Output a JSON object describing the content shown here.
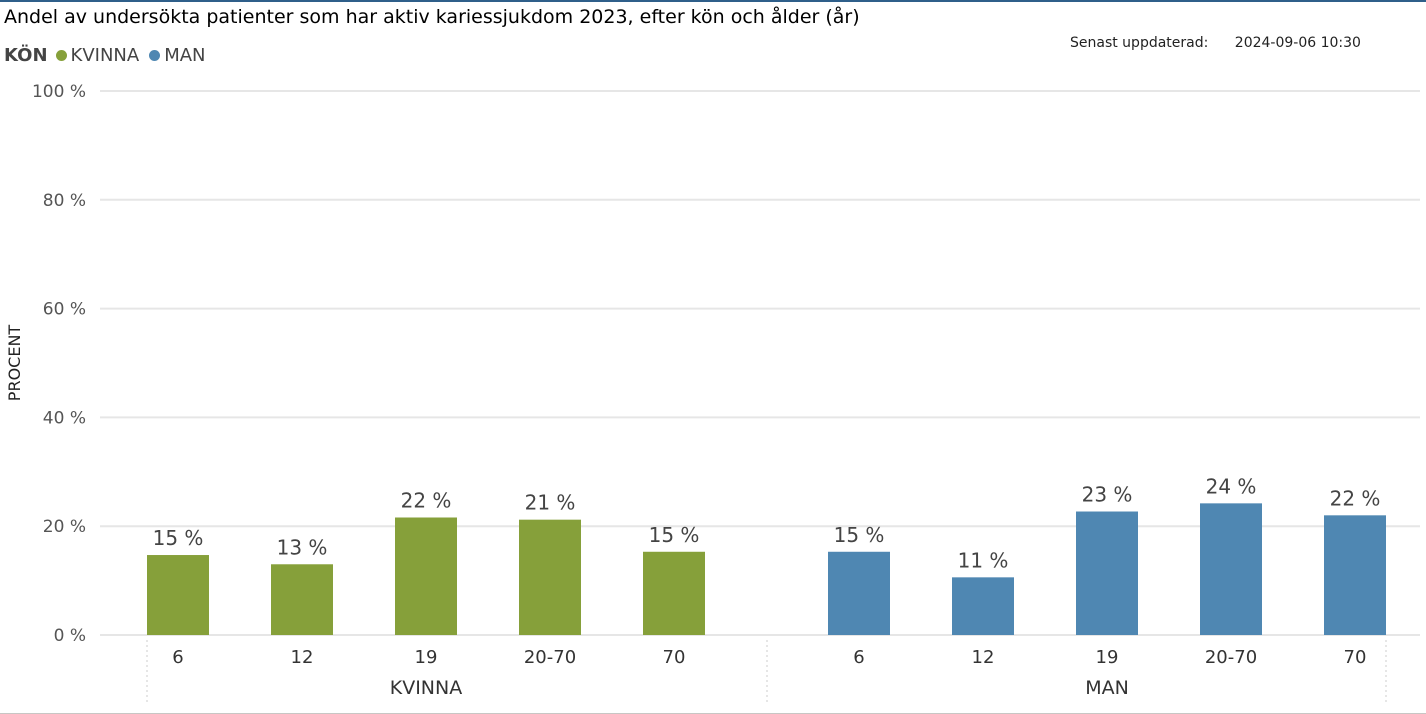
{
  "title": "Andel av undersökta patienter som har aktiv kariessjukdom 2023, efter kön och ålder (år)",
  "legend": {
    "title": "KÖN",
    "items": [
      {
        "label": "KVINNA",
        "color": "#86a03a"
      },
      {
        "label": "MAN",
        "color": "#4f87b2"
      }
    ]
  },
  "updated": {
    "label": "Senast uppdaterad:",
    "value": "2024-09-06 10:30"
  },
  "chart_data": {
    "type": "bar",
    "ylabel": "PROCENT",
    "ylim": [
      0,
      100
    ],
    "yticks": [
      0,
      20,
      40,
      60,
      80,
      100
    ],
    "ytick_labels": [
      "0 %",
      "20 %",
      "40 %",
      "60 %",
      "80 %",
      "100 %"
    ],
    "grid": true,
    "legend_position": "top-left",
    "groups": [
      {
        "name": "KVINNA",
        "color": "#86a03a",
        "categories": [
          "6",
          "12",
          "19",
          "20-70",
          "70"
        ],
        "values": [
          14.7,
          13.0,
          21.6,
          21.2,
          15.3
        ],
        "labels": [
          "15 %",
          "13 %",
          "22 %",
          "21 %",
          "15 %"
        ]
      },
      {
        "name": "MAN",
        "color": "#4f87b2",
        "categories": [
          "6",
          "12",
          "19",
          "20-70",
          "70"
        ],
        "values": [
          15.3,
          10.6,
          22.7,
          24.2,
          22.0
        ],
        "labels": [
          "15 %",
          "11 %",
          "23 %",
          "24 %",
          "22 %"
        ]
      }
    ]
  }
}
